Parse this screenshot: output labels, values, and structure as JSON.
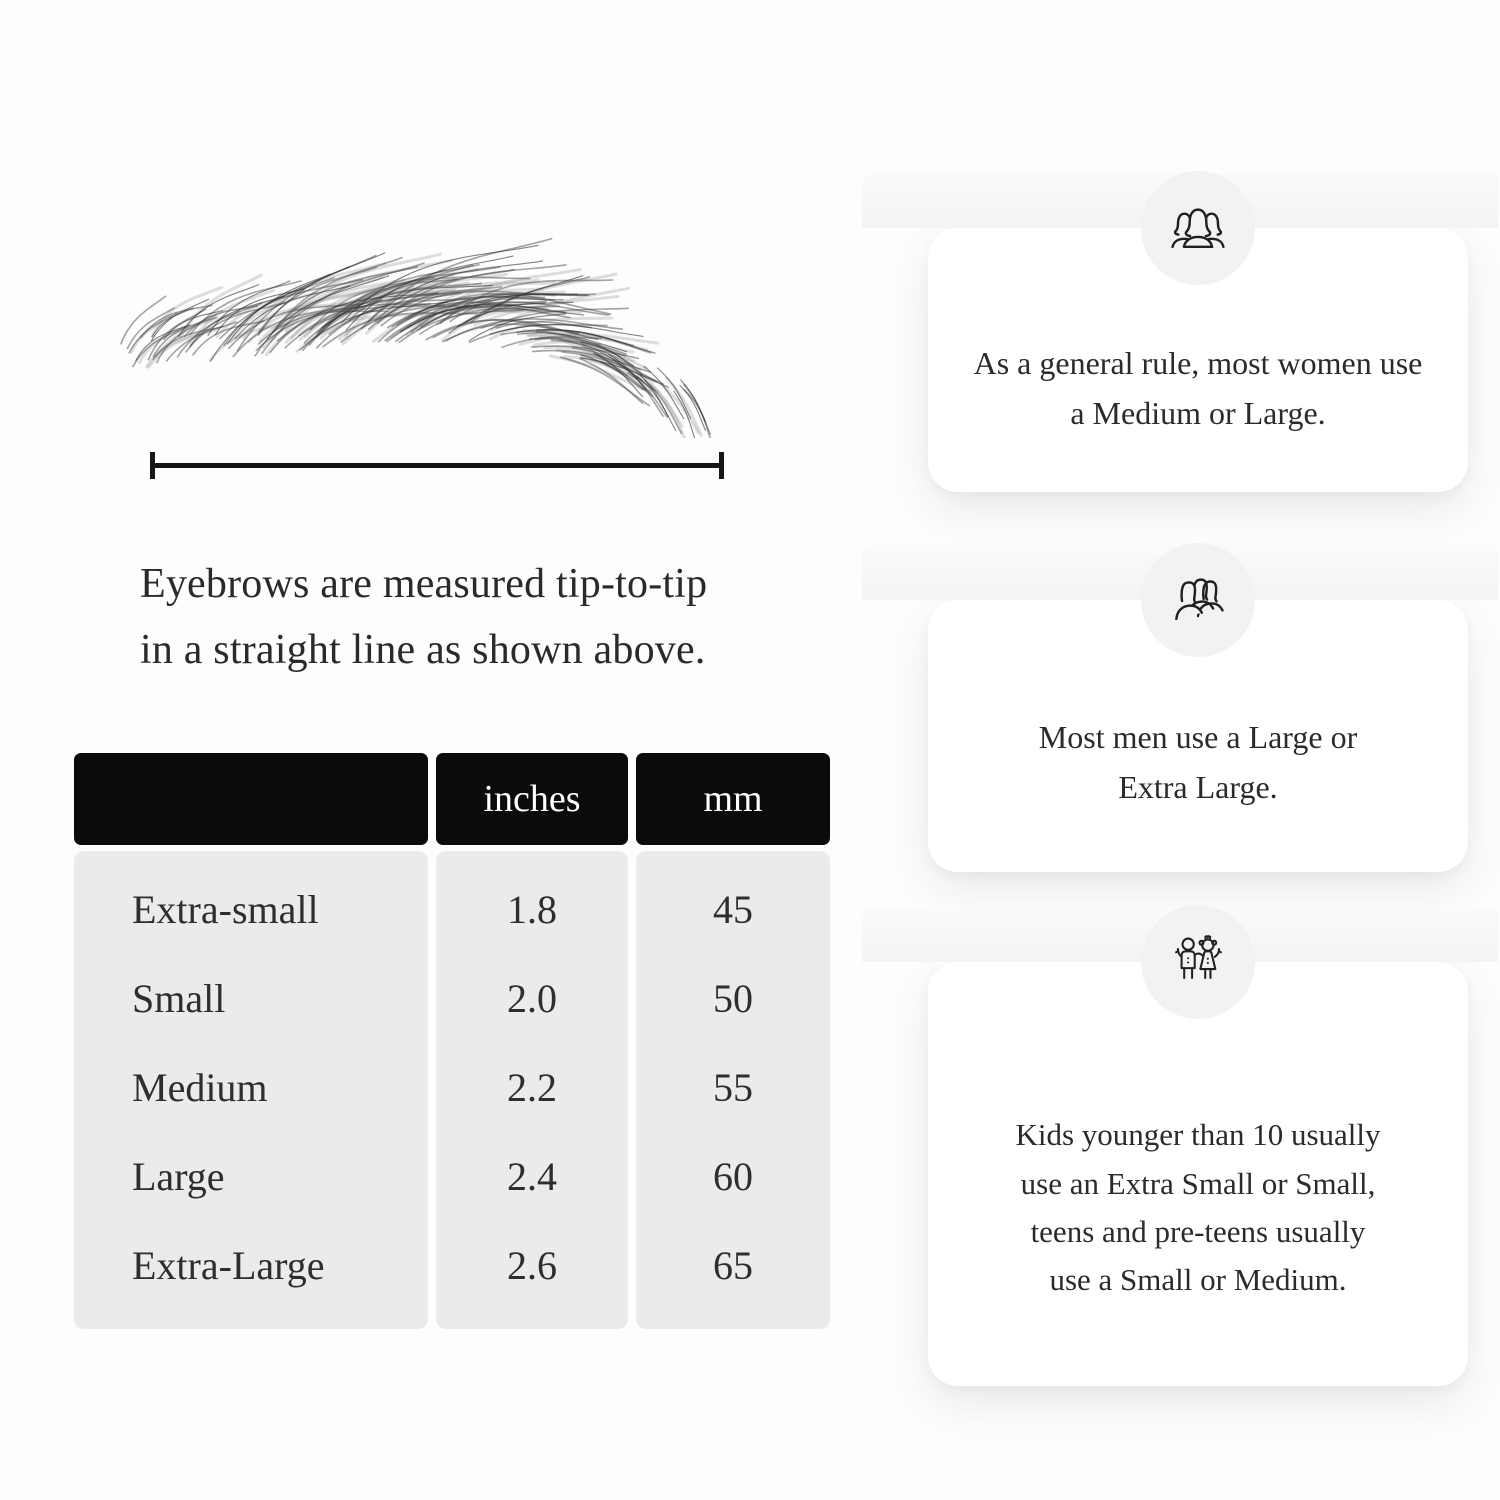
{
  "measurement": {
    "caption_line1": "Eyebrows are measured tip-to-tip",
    "caption_line2": "in a straight line as shown above."
  },
  "size_table": {
    "headers": [
      "",
      "inches",
      "mm"
    ],
    "rows": [
      {
        "label": "Extra-small",
        "inches": "1.8",
        "mm": "45"
      },
      {
        "label": "Small",
        "inches": "2.0",
        "mm": "50"
      },
      {
        "label": "Medium",
        "inches": "2.2",
        "mm": "55"
      },
      {
        "label": "Large",
        "inches": "2.4",
        "mm": "60"
      },
      {
        "label": "Extra-Large",
        "inches": "2.6",
        "mm": "65"
      }
    ]
  },
  "cards": [
    {
      "icon": "women-group-icon",
      "text": "As a general rule, most women use a Medium or Large."
    },
    {
      "icon": "men-group-icon",
      "text": "Most men use a Large or Extra Large."
    },
    {
      "icon": "kids-icon",
      "text": "Kids younger than 10 usually use an Extra Small or Small, teens and pre-teens usually use a Small or Medium."
    }
  ],
  "colors": {
    "page_bg": "#fdfdfd",
    "header_bg": "#0b0b0b",
    "header_text": "#ffffff",
    "table_body_bg": "#ebebeb",
    "icon_circle_bg": "#f1f2f2",
    "card_bg": "#ffffff",
    "text": "#242424"
  }
}
